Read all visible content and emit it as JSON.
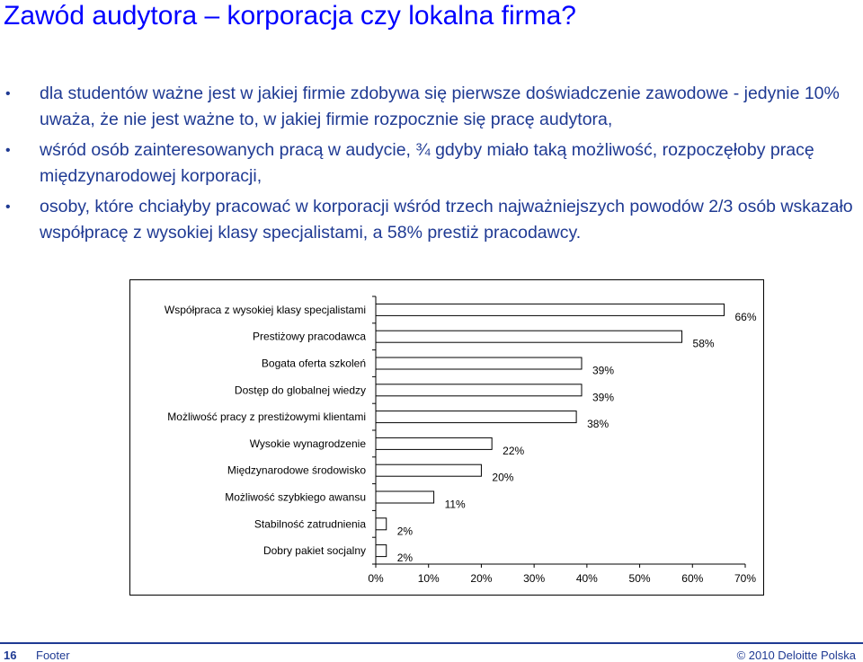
{
  "slide": {
    "title": "Zawód audytora – korporacja czy lokalna firma?",
    "bullets": [
      "dla studentów ważne jest w jakiej firmie zdobywa się pierwsze doświadczenie zawodowe - jedynie 10% uważa, że nie jest ważne to, w jakiej firmie rozpocznie się pracę audytora,",
      "wśród osób zainteresowanych pracą w audycie, ¾ gdyby miało taką możliwość, rozpoczęłoby pracę międzynarodowej korporacji,",
      "osoby, które chciałyby pracować w korporacji wśród trzech najważniejszych powodów 2/3 osób wskazało współpracę z wysokiej klasy specjalistami, a 58% prestiż pracodawcy."
    ],
    "bullet_symbol": "•"
  },
  "footer": {
    "page_number": "16",
    "text": "Footer",
    "copyright": "© 2010 Deloitte Polska"
  },
  "colors": {
    "title": "#0000ff",
    "text": "#1f3a93",
    "bar_fill": "#ffffff",
    "bar_stroke": "#000000"
  },
  "chart_data": {
    "type": "bar",
    "orientation": "horizontal",
    "categories": [
      "Współpraca z wysokiej klasy specjalistami",
      "Prestiżowy pracodawca",
      "Bogata oferta szkoleń",
      "Dostęp do globalnej wiedzy",
      "Możliwość pracy z prestiżowymi klientami",
      "Wysokie wynagrodzenie",
      "Międzynarodowe środowisko",
      "Możliwość szybkiego awansu",
      "Stabilność zatrudnienia",
      "Dobry pakiet socjalny"
    ],
    "values": [
      66,
      58,
      39,
      39,
      38,
      22,
      20,
      11,
      2,
      2
    ],
    "data_labels": [
      "66%",
      "58%",
      "39%",
      "39%",
      "38%",
      "22%",
      "20%",
      "11%",
      "2%",
      "2%"
    ],
    "xlim": [
      0,
      70
    ],
    "xticks": [
      0,
      10,
      20,
      30,
      40,
      50,
      60,
      70
    ],
    "xtick_labels": [
      "0%",
      "10%",
      "20%",
      "30%",
      "40%",
      "50%",
      "60%",
      "70%"
    ],
    "grid": false,
    "legend": "none"
  }
}
